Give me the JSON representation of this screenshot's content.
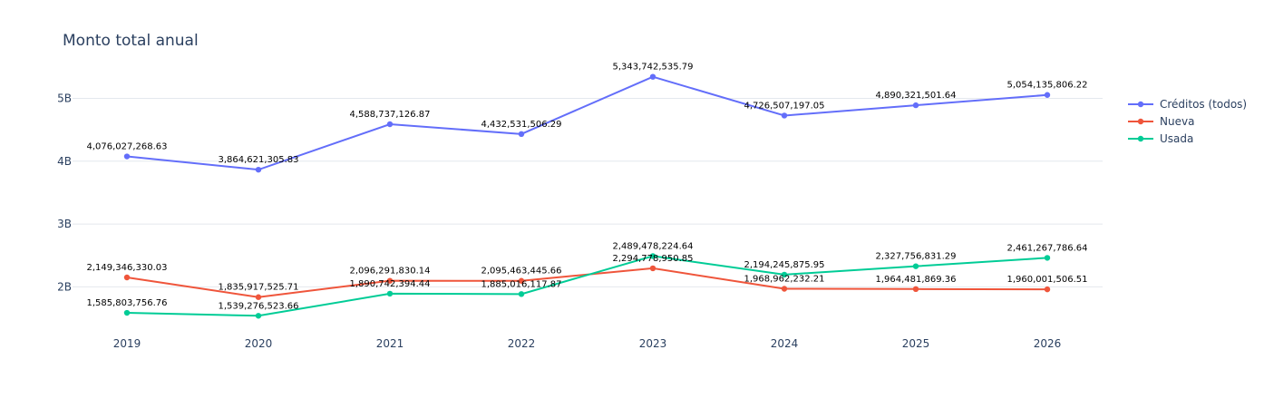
{
  "chart_data": {
    "type": "line",
    "title": "Monto total anual",
    "xlabel": "",
    "ylabel": "",
    "x": [
      2019,
      2020,
      2021,
      2022,
      2023,
      2024,
      2025,
      2026
    ],
    "x_tick_labels": [
      "2019",
      "2020",
      "2021",
      "2022",
      "2023",
      "2024",
      "2025",
      "2026"
    ],
    "y_ticks": [
      2000000000,
      3000000000,
      4000000000,
      5000000000
    ],
    "y_tick_labels": [
      "2B",
      "3B",
      "4B",
      "5B"
    ],
    "ylim": [
      1370000000,
      5700000000
    ],
    "grid": true,
    "legend_position": "top-right",
    "series": [
      {
        "name": "Créditos (todos)",
        "color": "#636efa",
        "values": [
          4076027268.63,
          3864621305.83,
          4588737126.87,
          4432531506.29,
          5343742535.79,
          4726507197.05,
          4890321501.64,
          5054135806.22
        ],
        "labels": [
          "4,076,027,268.63",
          "3,864,621,305.83",
          "4,588,737,126.87",
          "4,432,531,506.29",
          "5,343,742,535.79",
          "4,726,507,197.05",
          "4,890,321,501.64",
          "5,054,135,806.22"
        ]
      },
      {
        "name": "Nueva",
        "color": "#ef553b",
        "values": [
          2149346330.03,
          1835917525.71,
          2096291830.14,
          2095463445.66,
          2294778950.85,
          1968962232.21,
          1964481869.36,
          1960001506.51
        ],
        "labels": [
          "2,149,346,330.03",
          "1,835,917,525.71",
          "2,096,291,830.14",
          "2,095,463,445.66",
          "2,294,778,950.85",
          "1,968,962,232.21",
          "1,964,481,869.36",
          "1,960,001,506.51"
        ]
      },
      {
        "name": "Usada",
        "color": "#00cc96",
        "values": [
          1585803756.76,
          1539276523.66,
          1890742394.44,
          1885016117.87,
          2489478224.64,
          2194245875.95,
          2327756831.29,
          2461267786.64
        ],
        "labels": [
          "1,585,803,756.76",
          "1,539,276,523.66",
          "1,890,742,394.44",
          "1,885,016,117.87",
          "2,489,478,224.64",
          "2,194,245,875.95",
          "2,327,756,831.29",
          "2,461,267,786.64"
        ]
      }
    ]
  }
}
